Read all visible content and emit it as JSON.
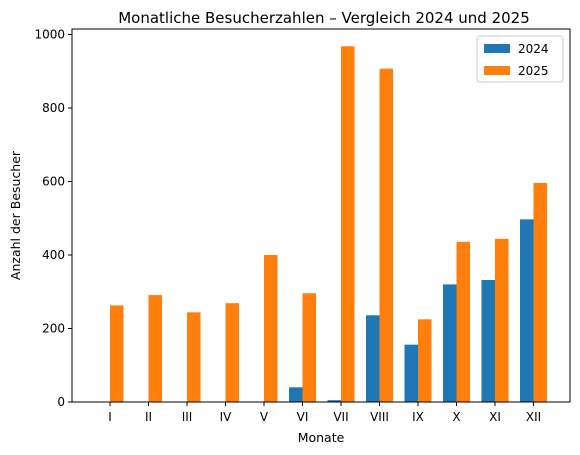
{
  "chart_data": {
    "type": "bar",
    "title": "Monatliche Besucherzahlen – Vergleich 2024 und 2025",
    "xlabel": "Monate",
    "ylabel": "Anzahl der Besucher",
    "categories": [
      "I",
      "II",
      "III",
      "IV",
      "V",
      "VI",
      "VII",
      "VIII",
      "IX",
      "X",
      "XI",
      "XII"
    ],
    "series": [
      {
        "name": "2024",
        "color": "#1f77b4",
        "values": [
          0,
          0,
          0,
          0,
          0,
          40,
          5,
          236,
          156,
          320,
          332,
          497
        ]
      },
      {
        "name": "2025",
        "color": "#ff7f0e",
        "values": [
          263,
          291,
          244,
          269,
          400,
          296,
          968,
          907,
          225,
          436,
          444,
          596
        ]
      }
    ],
    "ylim": [
      0,
      1015
    ],
    "yticks": [
      0,
      200,
      400,
      600,
      800,
      1000
    ],
    "grid": false,
    "legend": "top-right"
  }
}
